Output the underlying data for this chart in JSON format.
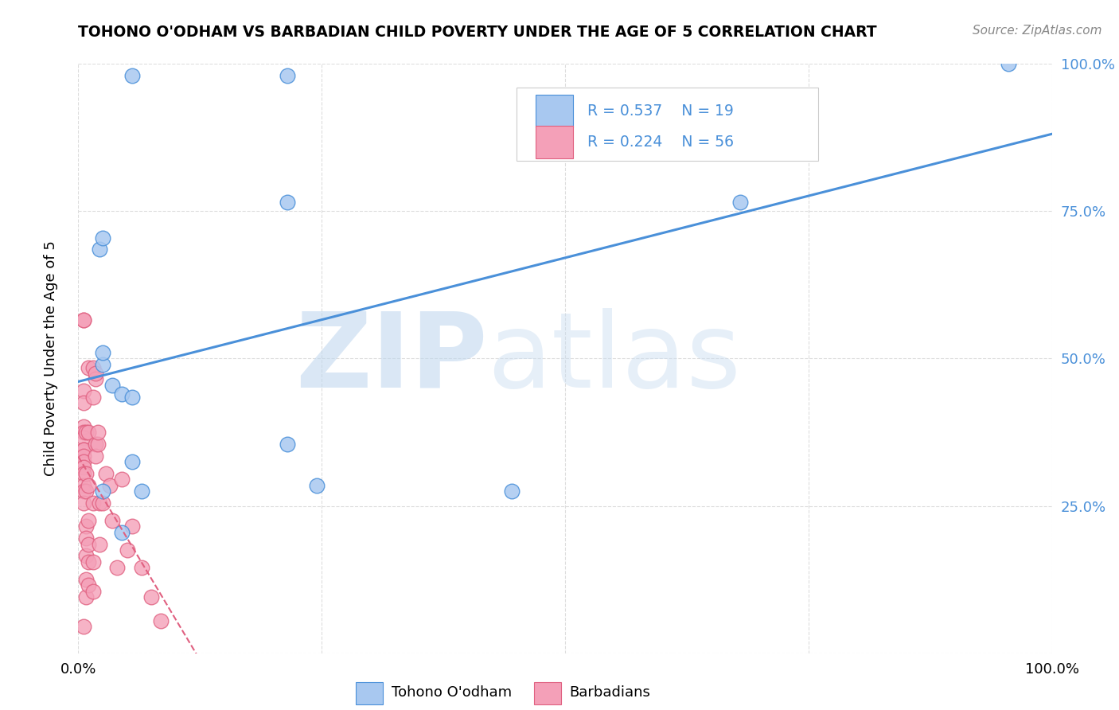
{
  "title": "TOHONO O'ODHAM VS BARBADIAN CHILD POVERTY UNDER THE AGE OF 5 CORRELATION CHART",
  "source": "Source: ZipAtlas.com",
  "ylabel": "Child Poverty Under the Age of 5",
  "xlim": [
    0,
    1.0
  ],
  "ylim": [
    0,
    1.0
  ],
  "color_tohono": "#A8C8F0",
  "color_barbadian": "#F4A0B8",
  "trendline_color_tohono": "#4A90D9",
  "trendline_color_barbadian": "#E06080",
  "grid_color": "#DDDDDD",
  "watermark_zip": "ZIP",
  "watermark_atlas": "atlas",
  "tohono_x": [
    0.022,
    0.025,
    0.055,
    0.215,
    0.025,
    0.035,
    0.045,
    0.055,
    0.065,
    0.215,
    0.245,
    0.445,
    0.025,
    0.045,
    0.055,
    0.955,
    0.025,
    0.215,
    0.68
  ],
  "tohono_y": [
    0.685,
    0.705,
    0.98,
    0.98,
    0.49,
    0.455,
    0.44,
    0.435,
    0.275,
    0.355,
    0.285,
    0.275,
    0.275,
    0.205,
    0.325,
    1.0,
    0.51,
    0.765,
    0.765
  ],
  "barbadian_x": [
    0.005,
    0.005,
    0.005,
    0.005,
    0.005,
    0.005,
    0.005,
    0.005,
    0.005,
    0.005,
    0.005,
    0.005,
    0.005,
    0.005,
    0.005,
    0.005,
    0.005,
    0.008,
    0.008,
    0.008,
    0.008,
    0.008,
    0.008,
    0.008,
    0.008,
    0.01,
    0.01,
    0.01,
    0.01,
    0.01,
    0.01,
    0.01,
    0.015,
    0.015,
    0.015,
    0.015,
    0.015,
    0.018,
    0.018,
    0.018,
    0.018,
    0.02,
    0.02,
    0.022,
    0.022,
    0.025,
    0.028,
    0.032,
    0.035,
    0.04,
    0.045,
    0.05,
    0.055,
    0.065,
    0.075,
    0.085
  ],
  "barbadian_y": [
    0.565,
    0.565,
    0.445,
    0.425,
    0.385,
    0.375,
    0.365,
    0.345,
    0.345,
    0.335,
    0.325,
    0.315,
    0.305,
    0.285,
    0.275,
    0.255,
    0.045,
    0.375,
    0.305,
    0.275,
    0.215,
    0.195,
    0.165,
    0.125,
    0.095,
    0.485,
    0.375,
    0.285,
    0.225,
    0.185,
    0.155,
    0.115,
    0.485,
    0.435,
    0.255,
    0.155,
    0.105,
    0.465,
    0.355,
    0.475,
    0.335,
    0.355,
    0.375,
    0.255,
    0.185,
    0.255,
    0.305,
    0.285,
    0.225,
    0.145,
    0.295,
    0.175,
    0.215,
    0.145,
    0.095,
    0.055
  ]
}
